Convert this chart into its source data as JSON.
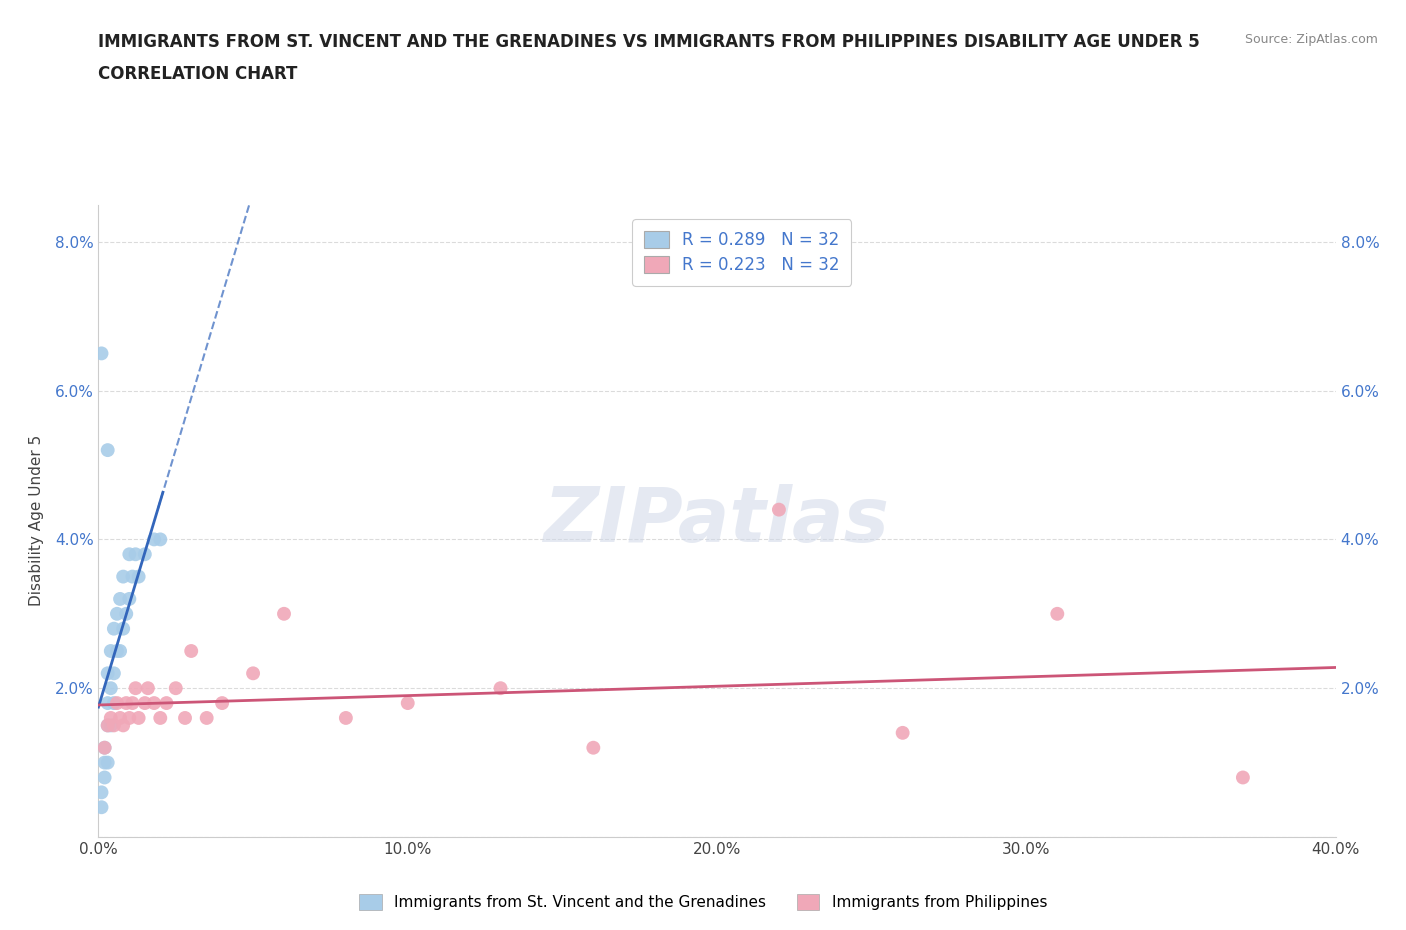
{
  "title_line1": "IMMIGRANTS FROM ST. VINCENT AND THE GRENADINES VS IMMIGRANTS FROM PHILIPPINES DISABILITY AGE UNDER 5",
  "title_line2": "CORRELATION CHART",
  "source": "Source: ZipAtlas.com",
  "ylabel": "Disability Age Under 5",
  "xmin": 0.0,
  "xmax": 0.4,
  "ymin": 0.0,
  "ymax": 0.085,
  "x_tick_labels": [
    "0.0%",
    "10.0%",
    "20.0%",
    "30.0%",
    "40.0%"
  ],
  "x_tick_vals": [
    0.0,
    0.1,
    0.2,
    0.3,
    0.4
  ],
  "y_tick_labels": [
    "",
    "2.0%",
    "4.0%",
    "6.0%",
    "8.0%"
  ],
  "y_tick_vals": [
    0.0,
    0.02,
    0.04,
    0.06,
    0.08
  ],
  "legend_r1_label": "R = 0.289",
  "legend_r1_n": "N = 32",
  "legend_r2_label": "R = 0.223",
  "legend_r2_n": "N = 32",
  "color_blue": "#a8cce8",
  "color_pink": "#f0a8b8",
  "line_color_blue": "#3366bb",
  "line_color_pink": "#cc5577",
  "watermark": "ZIPatlas",
  "background_color": "#ffffff",
  "grid_color": "#cccccc",
  "blue_scatter_x": [
    0.001,
    0.001,
    0.002,
    0.002,
    0.002,
    0.003,
    0.003,
    0.003,
    0.003,
    0.004,
    0.004,
    0.004,
    0.005,
    0.005,
    0.005,
    0.006,
    0.006,
    0.007,
    0.007,
    0.008,
    0.008,
    0.009,
    0.01,
    0.01,
    0.011,
    0.012,
    0.013,
    0.015,
    0.018,
    0.02,
    0.001,
    0.003
  ],
  "blue_scatter_y": [
    0.004,
    0.006,
    0.008,
    0.01,
    0.012,
    0.01,
    0.015,
    0.018,
    0.022,
    0.015,
    0.02,
    0.025,
    0.018,
    0.022,
    0.028,
    0.025,
    0.03,
    0.025,
    0.032,
    0.028,
    0.035,
    0.03,
    0.032,
    0.038,
    0.035,
    0.038,
    0.035,
    0.038,
    0.04,
    0.04,
    0.065,
    0.052
  ],
  "pink_scatter_x": [
    0.002,
    0.003,
    0.004,
    0.005,
    0.006,
    0.007,
    0.008,
    0.009,
    0.01,
    0.011,
    0.012,
    0.013,
    0.015,
    0.016,
    0.018,
    0.02,
    0.022,
    0.025,
    0.028,
    0.03,
    0.035,
    0.04,
    0.05,
    0.06,
    0.08,
    0.1,
    0.13,
    0.16,
    0.22,
    0.26,
    0.31,
    0.37
  ],
  "pink_scatter_y": [
    0.012,
    0.015,
    0.016,
    0.015,
    0.018,
    0.016,
    0.015,
    0.018,
    0.016,
    0.018,
    0.02,
    0.016,
    0.018,
    0.02,
    0.018,
    0.016,
    0.018,
    0.02,
    0.016,
    0.025,
    0.016,
    0.018,
    0.022,
    0.03,
    0.016,
    0.018,
    0.02,
    0.012,
    0.044,
    0.014,
    0.03,
    0.008
  ]
}
